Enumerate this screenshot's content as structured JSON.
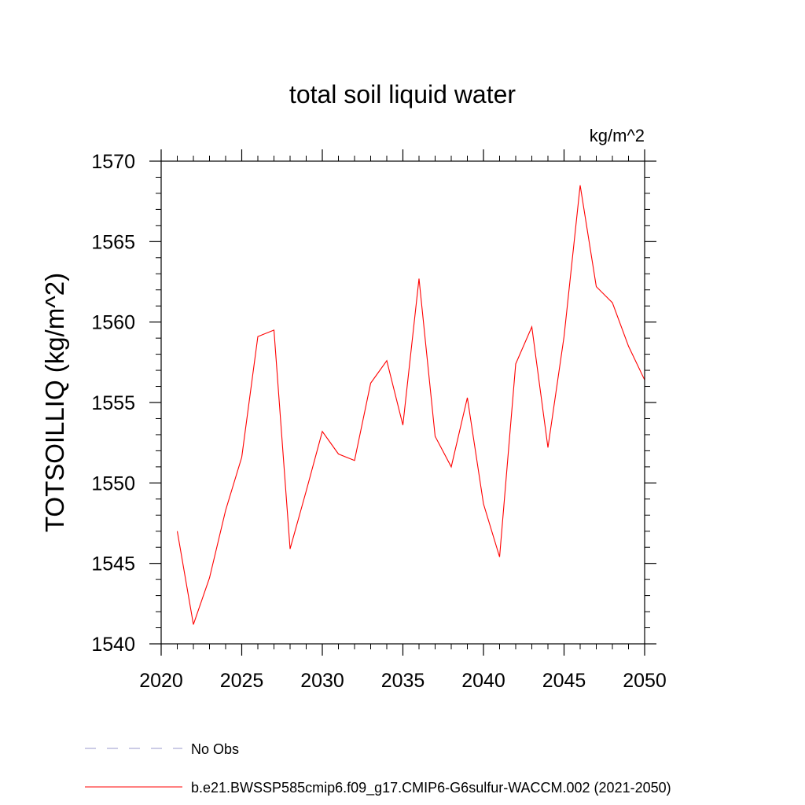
{
  "chart_data": {
    "type": "line",
    "title": "total soil liquid water",
    "units": "kg/m^2",
    "xlabel": "",
    "ylabel": "TOTSOILLIQ  (kg/m^2)",
    "xlim": [
      2020,
      2050
    ],
    "ylim": [
      1540,
      1570
    ],
    "xticks": [
      2020,
      2025,
      2030,
      2035,
      2040,
      2045,
      2050
    ],
    "yticks": [
      1540,
      1545,
      1550,
      1555,
      1560,
      1565,
      1570
    ],
    "x_minor_step": 1,
    "y_minor_step": 1,
    "legend_position": "bottom-left",
    "series": [
      {
        "name": "b.e21.BWSSP585cmip6.f09_g17.CMIP6-G6sulfur-WACCM.002 (2021-2050)",
        "color": "#ff0000",
        "style": "solid",
        "x": [
          2021,
          2022,
          2023,
          2024,
          2025,
          2026,
          2027,
          2028,
          2029,
          2030,
          2031,
          2032,
          2033,
          2034,
          2035,
          2036,
          2037,
          2038,
          2039,
          2040,
          2041,
          2042,
          2043,
          2044,
          2045,
          2046,
          2047,
          2048,
          2049,
          2050
        ],
        "y": [
          1547.0,
          1541.2,
          1544.1,
          1548.3,
          1551.6,
          1559.1,
          1559.5,
          1545.9,
          1549.5,
          1553.2,
          1551.8,
          1551.4,
          1556.2,
          1557.6,
          1553.6,
          1562.7,
          1552.9,
          1551.0,
          1555.3,
          1548.7,
          1545.4,
          1557.4,
          1559.7,
          1552.2,
          1559.1,
          1568.5,
          1562.2,
          1561.2,
          1558.5,
          1556.4
        ]
      }
    ],
    "legend": [
      {
        "label": "No Obs",
        "color": "#9999cc",
        "style": "dashed"
      },
      {
        "label": "b.e21.BWSSP585cmip6.f09_g17.CMIP6-G6sulfur-WACCM.002 (2021-2050)",
        "color": "#ff0000",
        "style": "solid"
      }
    ]
  }
}
